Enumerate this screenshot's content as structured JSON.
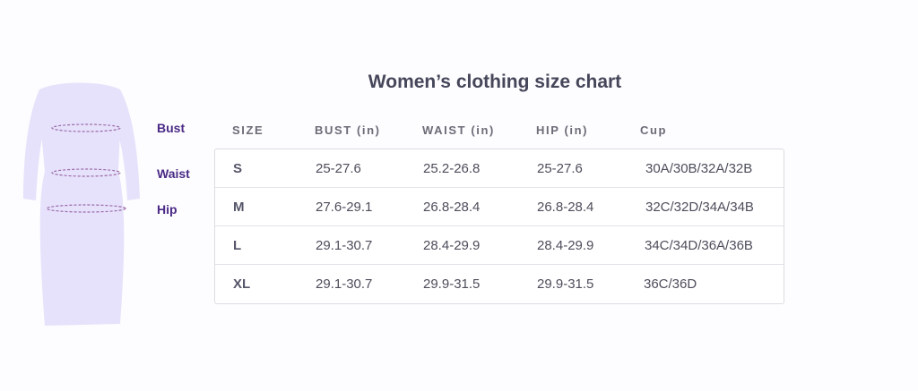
{
  "title": "Women’s clothing size chart",
  "figure_labels": {
    "bust": "Bust",
    "waist": "Waist",
    "hip": "Hip"
  },
  "columns": [
    "SIZE",
    "BUST (in)",
    "WAIST (in)",
    "HIP (in)",
    "Cup"
  ],
  "rows": [
    {
      "size": "S",
      "bust": "25-27.6",
      "waist": "25.2-26.8",
      "hip": "25-27.6",
      "cup": "30A/30B/32A/32B"
    },
    {
      "size": "M",
      "bust": "27.6-29.1",
      "waist": "26.8-28.4",
      "hip": "26.8-28.4",
      "cup": "32C/32D/34A/34B"
    },
    {
      "size": "L",
      "bust": "29.1-30.7",
      "waist": "28.4-29.9",
      "hip": "28.4-29.9",
      "cup": "34C/34D/36A/36B"
    },
    {
      "size": "XL",
      "bust": "29.1-30.7",
      "waist": "29.9-31.5",
      "hip": "29.9-31.5",
      "cup": "36C/36D"
    }
  ],
  "colors": {
    "dress_fill": "#e6e2fb",
    "measure_line": "#9b6aa8",
    "label": "#4a2a86",
    "title": "#45465a"
  }
}
